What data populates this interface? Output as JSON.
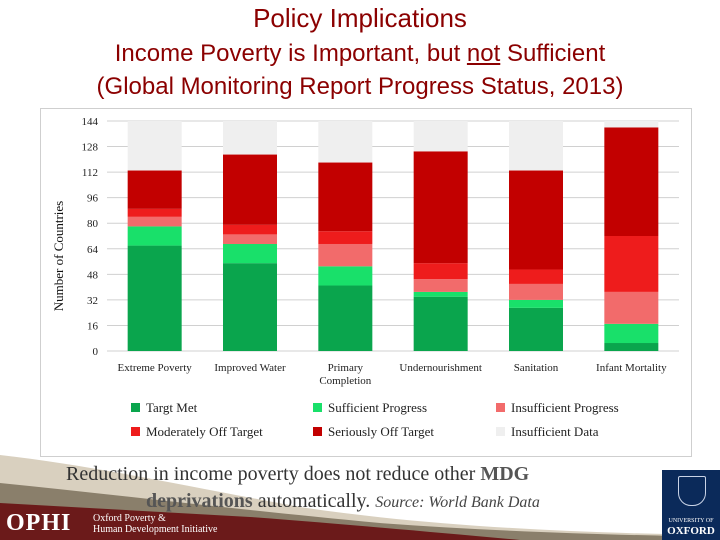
{
  "page": {
    "title": "Policy Implications",
    "subtitle_line1_before": "Income Poverty is Important, but ",
    "subtitle_line1_underlined": "not",
    "subtitle_line1_after": " Sufficient",
    "subtitle_line2": "(Global Monitoring Report Progress Status, 2013)",
    "caption_part1": "Reduction in income poverty does not reduce other ",
    "caption_bold1": "MDG",
    "caption_bold2": "deprivations",
    "caption_part2": " automatically.",
    "caption_source": "Source: World Bank Data",
    "footer_logo": "OPHI",
    "footer_org_line1": "Oxford Poverty &",
    "footer_org_line2": "Human Development Initiative",
    "oxford_line1": "UNIVERSITY OF",
    "oxford_line2": "OXFORD"
  },
  "chart_data": {
    "type": "bar",
    "stacked": true,
    "ylabel": "Number of Countries",
    "ylim": [
      0,
      144
    ],
    "yticks": [
      0,
      16,
      32,
      48,
      64,
      80,
      96,
      112,
      128,
      144
    ],
    "grid": true,
    "legend_position": "bottom",
    "categories": [
      [
        "Extreme Poverty"
      ],
      [
        "Improved Water"
      ],
      [
        "Primary",
        "Completion"
      ],
      [
        "Undernourishment"
      ],
      [
        "Sanitation"
      ],
      [
        "Infant Mortality"
      ]
    ],
    "series": [
      {
        "name": "Target Met",
        "color": "#0aa54d",
        "values": [
          66,
          55,
          41,
          34,
          27,
          5
        ]
      },
      {
        "name": "Sufficient Progress",
        "color": "#19e06a",
        "values": [
          12,
          12,
          12,
          3,
          5,
          12
        ]
      },
      {
        "name": "Insufficient Progress",
        "color": "#f26b6b",
        "values": [
          6,
          6,
          14,
          8,
          10,
          20
        ]
      },
      {
        "name": "Moderately Off Target",
        "color": "#ee1c1c",
        "values": [
          5,
          6,
          8,
          10,
          9,
          35
        ]
      },
      {
        "name": "Seriously Off Target",
        "color": "#c20000",
        "values": [
          24,
          44,
          43,
          70,
          62,
          68
        ]
      },
      {
        "name": "Insufficient Data",
        "color": "#efefef",
        "values": [
          31,
          21,
          26,
          19,
          31,
          4
        ]
      }
    ],
    "legend_labels": [
      "Targt Met",
      "Sufficient Progress",
      "Insufficient Progress",
      "Moderately Off  Target",
      "Seriously Off  Target",
      "Insufficient Data"
    ]
  }
}
